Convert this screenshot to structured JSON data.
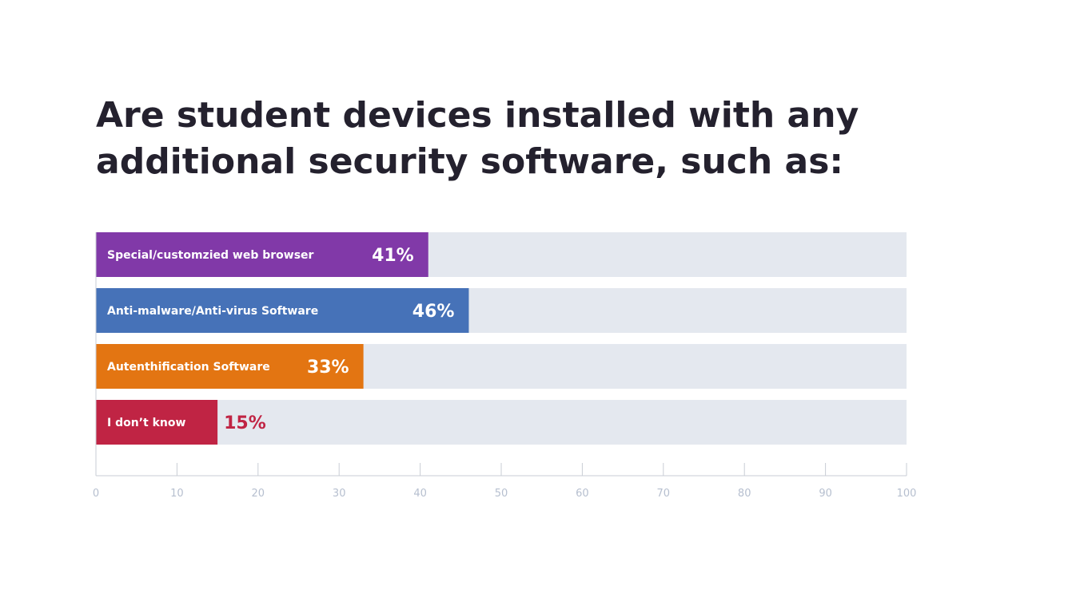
{
  "chart_data": {
    "type": "bar",
    "orientation": "horizontal",
    "title": "Are student devices installed with any additional security software, such as:",
    "categories": [
      "Special/customzied web browser",
      "Anti-malware/Anti-virus Software",
      "Autenthification Software",
      "I don’t know"
    ],
    "values": [
      41,
      46,
      33,
      15
    ],
    "value_labels": [
      "41%",
      "46%",
      "33%",
      "15%"
    ],
    "bar_colors": [
      "#8139a8",
      "#4672b8",
      "#e37512",
      "#c02444"
    ],
    "value_label_colors": [
      "#ffffff",
      "#ffffff",
      "#ffffff",
      "#c02444"
    ],
    "value_label_inside": [
      true,
      true,
      true,
      false
    ],
    "track_color": "#e4e8ef",
    "axis_color": "#c9cdd5",
    "xlim": [
      0,
      100
    ],
    "xticks": [
      0,
      10,
      20,
      30,
      40,
      50,
      60,
      70,
      80,
      90,
      100
    ],
    "tick_labels": [
      "0",
      "10",
      "20",
      "30",
      "40",
      "50",
      "60",
      "70",
      "80",
      "90",
      "100"
    ]
  }
}
